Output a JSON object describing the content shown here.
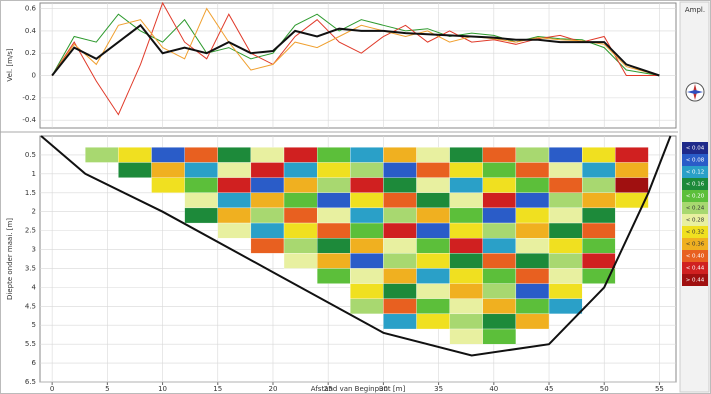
{
  "chart_data": [
    {
      "type": "line",
      "y_label": "Vel. [m/s]",
      "x": [
        0,
        2,
        4,
        6,
        8,
        10,
        12,
        14,
        16,
        18,
        20,
        22,
        24,
        26,
        28,
        30,
        32,
        34,
        36,
        38,
        40,
        42,
        44,
        46,
        48,
        50,
        52,
        55
      ],
      "xlim": [
        -1.1,
        56.5
      ],
      "xticks": [
        0,
        5,
        10,
        15,
        20,
        25,
        30,
        35,
        40,
        45,
        50,
        55
      ],
      "ylim": [
        -0.47,
        0.65
      ],
      "yticks": [
        -0.4,
        -0.2,
        0,
        0.2,
        0.4,
        0.6
      ],
      "grid": true,
      "series": [
        {
          "color": "#2e9a2e",
          "values": [
            0,
            0.35,
            0.3,
            0.55,
            0.4,
            0.3,
            0.5,
            0.2,
            0.25,
            0.15,
            0.2,
            0.45,
            0.55,
            0.4,
            0.5,
            0.45,
            0.4,
            0.42,
            0.35,
            0.38,
            0.36,
            0.3,
            0.35,
            0.33,
            0.32,
            0.25,
            0.05,
            0
          ]
        },
        {
          "color": "#e03a2a",
          "values": [
            0,
            0.3,
            -0.05,
            -0.35,
            0.1,
            0.65,
            0.3,
            0.15,
            0.55,
            0.2,
            0.1,
            0.35,
            0.5,
            0.3,
            0.2,
            0.35,
            0.45,
            0.3,
            0.4,
            0.3,
            0.32,
            0.28,
            0.33,
            0.36,
            0.3,
            0.35,
            0,
            0
          ]
        },
        {
          "color": "#f0a030",
          "values": [
            0,
            0.28,
            0.1,
            0.45,
            0.5,
            0.25,
            0.15,
            0.6,
            0.3,
            0.05,
            0.1,
            0.3,
            0.25,
            0.35,
            0.45,
            0.4,
            0.35,
            0.4,
            0.3,
            0.35,
            0.33,
            0.3,
            0.34,
            0.32,
            0.31,
            0.28,
            0.08,
            0
          ]
        },
        {
          "color": "#111111",
          "values": [
            0,
            0.25,
            0.15,
            0.3,
            0.45,
            0.2,
            0.25,
            0.2,
            0.3,
            0.2,
            0.22,
            0.4,
            0.35,
            0.42,
            0.4,
            0.4,
            0.38,
            0.37,
            0.36,
            0.35,
            0.34,
            0.32,
            0.32,
            0.3,
            0.3,
            0.3,
            0.1,
            0
          ]
        }
      ]
    },
    {
      "type": "heatmap",
      "x_label": "Afstand van Beginpunt [m]",
      "y_label": "Diepte onder maai. [m]",
      "xlim": [
        -1.1,
        56.5
      ],
      "xticks": [
        0,
        5,
        10,
        15,
        20,
        25,
        30,
        35,
        40,
        45,
        50,
        55
      ],
      "ylim": [
        0,
        6.5
      ],
      "yticks": [
        0.5,
        1,
        1.5,
        2,
        2.5,
        3,
        3.5,
        4,
        4.5,
        5,
        5.5,
        6,
        6.5
      ],
      "grid": true,
      "x_edges": [
        3,
        6,
        9,
        12,
        15,
        18,
        21,
        24,
        27,
        30,
        33,
        36,
        39,
        42,
        45,
        48,
        51,
        54
      ],
      "depth_edges": [
        0.3,
        0.7,
        1.1,
        1.5,
        1.9,
        2.3,
        2.7,
        3.1,
        3.5,
        3.9,
        4.3,
        4.7,
        5.1,
        5.5
      ],
      "values": [
        [
          0.22,
          0.3,
          0.05,
          0.38,
          0.12,
          0.27,
          0.41,
          0.18,
          0.09,
          0.33,
          0.25,
          0.14,
          0.36,
          0.21,
          0.07,
          0.29,
          0.4
        ],
        [
          null,
          0.15,
          0.34,
          0.08,
          0.26,
          0.43,
          0.11,
          0.31,
          0.2,
          0.04,
          0.37,
          0.28,
          0.16,
          0.39,
          0.24,
          0.1,
          0.35
        ],
        [
          null,
          null,
          0.28,
          0.19,
          0.4,
          0.06,
          0.33,
          0.23,
          0.42,
          0.14,
          0.27,
          0.08,
          0.31,
          0.18,
          0.36,
          0.22,
          0.44
        ],
        [
          null,
          null,
          null,
          0.25,
          0.09,
          0.35,
          0.17,
          0.04,
          0.29,
          0.38,
          0.12,
          0.24,
          0.41,
          0.06,
          0.2,
          0.33,
          0.3
        ],
        [
          null,
          null,
          null,
          0.13,
          0.32,
          0.21,
          0.39,
          0.27,
          0.1,
          0.23,
          0.35,
          0.19,
          0.07,
          0.3,
          0.26,
          0.15,
          null
        ],
        [
          null,
          null,
          null,
          null,
          0.24,
          0.11,
          0.3,
          0.36,
          0.18,
          0.42,
          0.05,
          0.28,
          0.22,
          0.34,
          0.13,
          0.37,
          null
        ],
        [
          null,
          null,
          null,
          null,
          null,
          0.38,
          0.2,
          0.14,
          0.32,
          0.26,
          0.17,
          0.4,
          0.09,
          0.25,
          0.31,
          0.19,
          null
        ],
        [
          null,
          null,
          null,
          null,
          null,
          null,
          0.27,
          0.33,
          0.07,
          0.21,
          0.3,
          0.15,
          0.36,
          0.12,
          0.23,
          0.41,
          null
        ],
        [
          null,
          null,
          null,
          null,
          null,
          null,
          null,
          0.19,
          0.25,
          0.34,
          0.08,
          0.29,
          0.18,
          0.38,
          0.27,
          0.16,
          null
        ],
        [
          null,
          null,
          null,
          null,
          null,
          null,
          null,
          null,
          0.31,
          0.13,
          0.24,
          0.35,
          0.2,
          0.06,
          0.28,
          null,
          null
        ],
        [
          null,
          null,
          null,
          null,
          null,
          null,
          null,
          null,
          0.22,
          0.37,
          0.16,
          0.27,
          0.32,
          0.19,
          0.11,
          null,
          null
        ],
        [
          null,
          null,
          null,
          null,
          null,
          null,
          null,
          null,
          null,
          0.09,
          0.29,
          0.23,
          0.14,
          0.34,
          null,
          null,
          null
        ],
        [
          null,
          null,
          null,
          null,
          null,
          null,
          null,
          null,
          null,
          null,
          null,
          0.26,
          0.17,
          null,
          null,
          null,
          null
        ]
      ],
      "bed": {
        "x": [
          -1,
          3,
          10,
          20,
          30,
          38,
          45,
          50,
          54,
          56
        ],
        "depth": [
          0,
          1,
          2,
          3.6,
          5.2,
          5.8,
          5.5,
          4,
          1.5,
          0
        ]
      },
      "colorscale": [
        {
          "value": 0.04,
          "label": "< 0.04",
          "color": "#1f2a8a"
        },
        {
          "value": 0.08,
          "label": "< 0.08",
          "color": "#2a5cc8"
        },
        {
          "value": 0.12,
          "label": "< 0.12",
          "color": "#2aa0c8"
        },
        {
          "value": 0.16,
          "label": "< 0.16",
          "color": "#1d8a3a"
        },
        {
          "value": 0.2,
          "label": "< 0.20",
          "color": "#5cbf3a"
        },
        {
          "value": 0.24,
          "label": "< 0.24",
          "color": "#a8d870"
        },
        {
          "value": 0.28,
          "label": "< 0.28",
          "color": "#e8f0a0"
        },
        {
          "value": 0.32,
          "label": "< 0.32",
          "color": "#f0e020"
        },
        {
          "value": 0.36,
          "label": "< 0.36",
          "color": "#f0b020"
        },
        {
          "value": 0.4,
          "label": "< 0.40",
          "color": "#e86020"
        },
        {
          "value": 0.44,
          "label": "< 0.44",
          "color": "#d02020"
        },
        {
          "value": 0.48,
          "label": "> 0.44",
          "color": "#a01010"
        }
      ]
    }
  ],
  "panel": {
    "title": "Ampl."
  }
}
